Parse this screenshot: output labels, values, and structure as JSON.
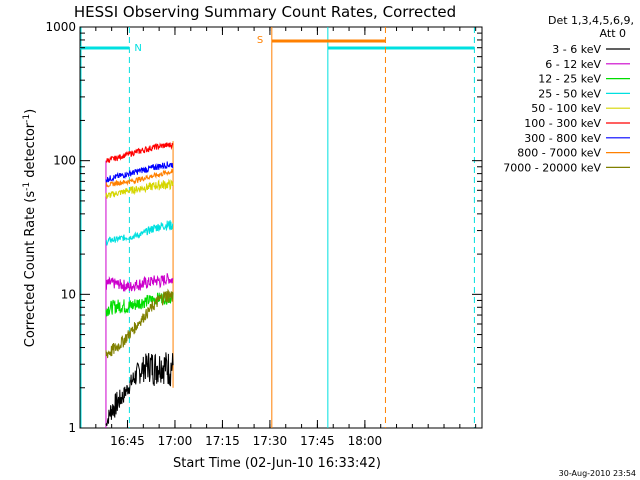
{
  "chart_data": {
    "type": "line",
    "title": "HESSI Observing Summary Count Rates, Corrected",
    "xlabel": "Start Time (02-Jun-10 16:33:42)",
    "ylabel_main": "Corrected Count Rate (s",
    "ylabel_sup1": "-1",
    "ylabel_mid": " detector",
    "ylabel_sup2": "-1",
    "ylabel_end": ")",
    "yscale": "log",
    "ylim": [
      1,
      1000
    ],
    "xlim_min": [
      -3.7,
      123.3
    ],
    "y_ticks": [
      {
        "label": "1",
        "value": 1
      },
      {
        "label": "10",
        "value": 10
      },
      {
        "label": "100",
        "value": 100
      },
      {
        "label": "1000",
        "value": 1000
      }
    ],
    "x_ticks": [
      {
        "label": "16:45",
        "value": 11.3
      },
      {
        "label": "17:00",
        "value": 26.3
      },
      {
        "label": "17:15",
        "value": 41.3
      },
      {
        "label": "17:30",
        "value": 56.3
      },
      {
        "label": "17:45",
        "value": 71.3
      },
      {
        "label": "18:00",
        "value": 86.3
      }
    ],
    "legend_header": [
      "Det 1,3,4,5,6,9,",
      "Att 0"
    ],
    "series": [
      {
        "name": "3 - 6 keV",
        "color": "#000000",
        "t": [
          4.5,
          6,
          8,
          10,
          12,
          14,
          16,
          18,
          20,
          22,
          24,
          25.7
        ],
        "low": [
          1,
          1.1,
          1.2,
          1.5,
          1.8,
          2.0,
          2.2,
          2.2,
          2.0,
          2.2,
          2.0,
          2.0
        ],
        "high": [
          1.1,
          1.6,
          1.9,
          2.0,
          2.4,
          3.0,
          3.4,
          3.8,
          3.8,
          3.8,
          3.8,
          3.8
        ]
      },
      {
        "name": "6 - 12 keV",
        "color": "#cc00cc",
        "t": [
          4.5,
          6,
          8,
          10,
          12,
          14,
          16,
          18,
          20,
          22,
          24,
          25.7
        ],
        "low": [
          10.5,
          10.8,
          11,
          10.5,
          10.2,
          10.8,
          10.5,
          11,
          11.5,
          11,
          12,
          11.5
        ],
        "high": [
          13,
          13.5,
          13,
          13,
          12.5,
          13,
          13.5,
          13.5,
          14,
          14,
          14.5,
          14
        ]
      },
      {
        "name": "12 - 25 keV",
        "color": "#00dd00",
        "t": [
          4.5,
          6,
          8,
          10,
          12,
          14,
          16,
          18,
          20,
          22,
          24,
          25.7
        ],
        "low": [
          6.8,
          7,
          7.2,
          7.2,
          7.0,
          7.5,
          7.8,
          8.0,
          8.2,
          8.5,
          8.4,
          8.6
        ],
        "high": [
          8.6,
          9,
          9.2,
          9.3,
          9.2,
          9.5,
          9.8,
          10,
          10.2,
          10.5,
          10.2,
          10.5
        ]
      },
      {
        "name": "25 - 50 keV",
        "color": "#00e0e0",
        "t": [
          4.5,
          6,
          8,
          10,
          12,
          14,
          16,
          18,
          20,
          22,
          24,
          25.7
        ],
        "low": [
          23,
          24,
          24.5,
          25,
          25.5,
          26,
          27,
          28,
          29,
          30,
          30,
          30
        ],
        "high": [
          26,
          27,
          27,
          28,
          28,
          29,
          30,
          32,
          34,
          35,
          36,
          36
        ]
      },
      {
        "name": "50 - 100 keV",
        "color": "#d6d600",
        "t": [
          4.5,
          6,
          8,
          10,
          12,
          14,
          16,
          18,
          20,
          22,
          24,
          25.7
        ],
        "low": [
          51,
          52,
          54,
          55,
          56,
          57,
          58,
          59,
          60,
          60,
          61,
          60
        ],
        "high": [
          58,
          59,
          60,
          62,
          64,
          65,
          67,
          68,
          70,
          72,
          72,
          72
        ]
      },
      {
        "name": "100 - 300 keV",
        "color": "#ff0000",
        "t": [
          4.5,
          6,
          8,
          10,
          12,
          14,
          16,
          18,
          20,
          22,
          24,
          25.7
        ],
        "low": [
          95,
          97,
          100,
          104,
          107,
          110,
          113,
          116,
          120,
          122,
          124,
          124
        ],
        "high": [
          105,
          107,
          110,
          114,
          118,
          122,
          126,
          130,
          133,
          135,
          138,
          138
        ]
      },
      {
        "name": "300 - 800 keV",
        "color": "#0000ff",
        "t": [
          4.5,
          6,
          8,
          10,
          12,
          14,
          16,
          18,
          20,
          22,
          24,
          25.7
        ],
        "low": [
          68,
          70,
          72,
          74,
          76,
          78,
          80,
          82,
          84,
          86,
          88,
          88
        ],
        "high": [
          76,
          78,
          80,
          82,
          84,
          87,
          90,
          92,
          95,
          97,
          99,
          99
        ]
      },
      {
        "name": "800 - 7000 keV",
        "color": "#ff8000",
        "t": [
          4.5,
          6,
          8,
          10,
          12,
          14,
          16,
          18,
          20,
          22,
          24,
          25.7
        ],
        "low": [
          63,
          64,
          65,
          66,
          67,
          68,
          70,
          72,
          74,
          76,
          78,
          78
        ],
        "high": [
          68,
          69,
          71,
          72,
          73,
          75,
          77,
          79,
          81,
          83,
          86,
          86
        ]
      },
      {
        "name": "7000 - 20000 keV",
        "color": "#808000",
        "t": [
          4.5,
          6,
          8,
          10,
          12,
          14,
          16,
          18,
          20,
          22,
          24,
          25.7
        ],
        "low": [
          3.2,
          3.3,
          3.6,
          4.0,
          4.6,
          5.2,
          6.0,
          6.8,
          7.6,
          8.2,
          8.6,
          8.5
        ],
        "high": [
          4.0,
          4.2,
          4.5,
          5.0,
          5.6,
          6.4,
          7.2,
          8.2,
          9.4,
          10.5,
          11.2,
          11
        ]
      }
    ],
    "annotations": {
      "night_label": "N",
      "saa_label": "S"
    }
  },
  "footer": {
    "timestamp": "30-Aug-2010 23:54"
  }
}
